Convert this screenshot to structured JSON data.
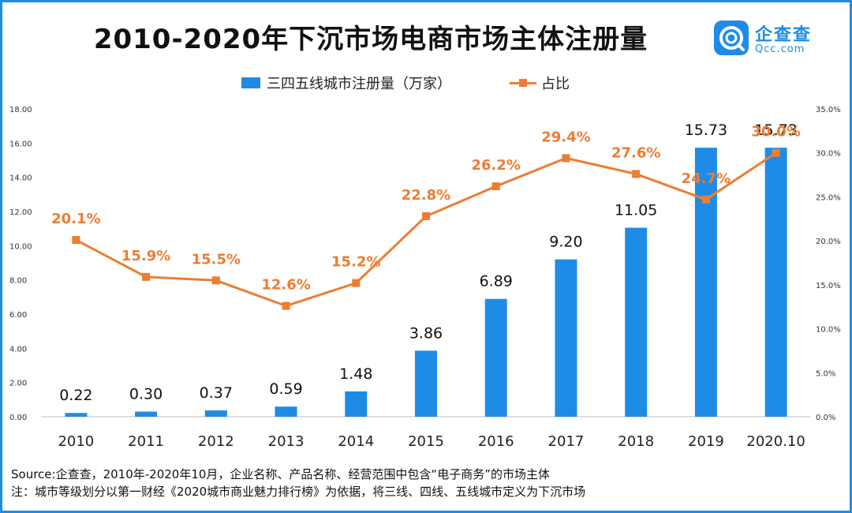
{
  "title": "2010-2020年下沉市场电商市场主体注册量",
  "brand": {
    "name_cn": "企查查",
    "name_en": "Qcc.com",
    "color": "#1E8CE6"
  },
  "colors": {
    "bar": "#1E8CE6",
    "line": "#ED7D31",
    "axis": "#999999",
    "text": "#222222"
  },
  "chart_data": {
    "type": "bar",
    "title": "2010-2020年下沉市场电商市场主体注册量",
    "categories": [
      "2010",
      "2011",
      "2012",
      "2013",
      "2014",
      "2015",
      "2016",
      "2017",
      "2018",
      "2019",
      "2020.10"
    ],
    "series": [
      {
        "name": "三四五线城市注册量（万家）",
        "type": "bar",
        "axis": "left",
        "values": [
          0.22,
          0.3,
          0.37,
          0.59,
          1.48,
          3.86,
          6.89,
          9.2,
          11.05,
          15.73,
          15.73
        ],
        "labels": [
          "0.22",
          "0.30",
          "0.37",
          "0.59",
          "1.48",
          "3.86",
          "6.89",
          "9.20",
          "11.05",
          "15.73",
          "15.73"
        ]
      },
      {
        "name": "占比",
        "type": "line",
        "axis": "right",
        "values": [
          20.1,
          15.9,
          15.5,
          12.6,
          15.2,
          22.8,
          26.2,
          29.4,
          27.6,
          24.7,
          30.0
        ],
        "labels": [
          "20.1%",
          "15.9%",
          "15.5%",
          "12.6%",
          "15.2%",
          "22.8%",
          "26.2%",
          "29.4%",
          "27.6%",
          "24.7%",
          "30.0%"
        ]
      }
    ],
    "y_left": {
      "min": 0,
      "max": 18,
      "ticks": [
        "0.00",
        "2.00",
        "4.00",
        "6.00",
        "8.00",
        "10.00",
        "12.00",
        "14.00",
        "16.00",
        "18.00"
      ]
    },
    "y_right": {
      "min": 0,
      "max": 35,
      "ticks": [
        "0.0%",
        "5.0%",
        "10.0%",
        "15.0%",
        "20.0%",
        "25.0%",
        "30.0%",
        "35.0%"
      ]
    },
    "grid": false,
    "legend_position": "top"
  },
  "footer": {
    "source": "Source:企查查，2010年-2020年10月，企业名称、产品名称、经营范围中包含“电子商务”的市场主体",
    "note": "注：城市等级划分以第一财经《2020城市商业魅力排行榜》为依据，将三线、四线、五线城市定义为下沉市场"
  }
}
